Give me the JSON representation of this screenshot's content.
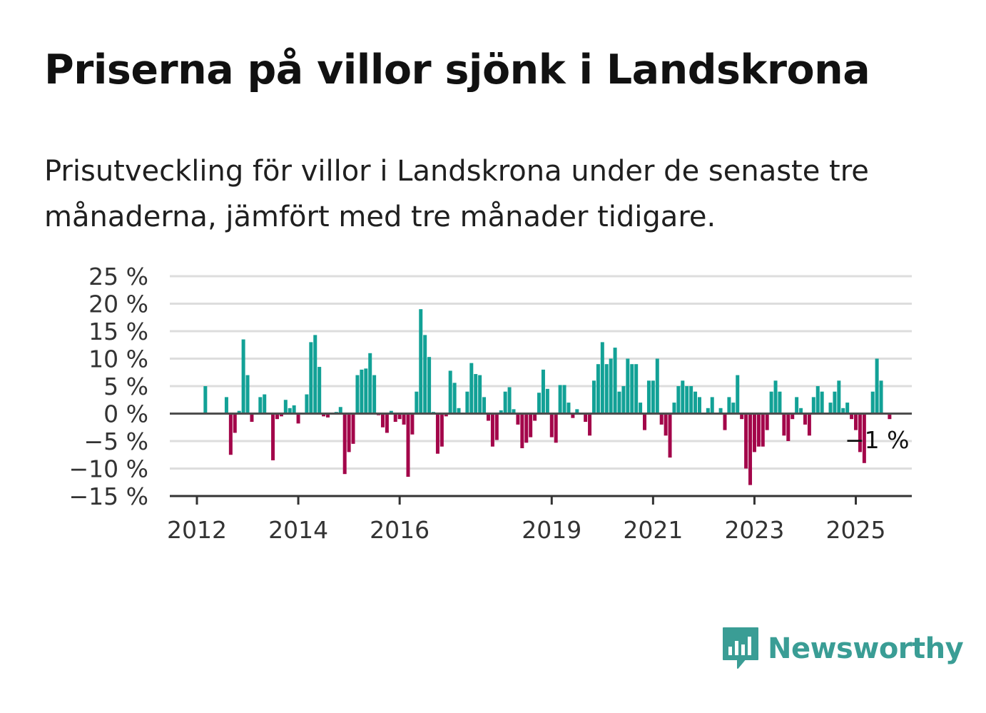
{
  "title": "Priserna på villor sjönk i Landskrona",
  "subtitle": "Prisutveckling för villor i Landskrona under de senaste tre månaderna, jämfört med tre månader tidigare.",
  "last_value_label": "−1 %",
  "brand": {
    "name": "Newsworthy",
    "icon": "newsworthy-logo-icon",
    "color": "#3a9d95"
  },
  "colors": {
    "positive": "#12a196",
    "negative": "#a3064a",
    "grid": "#dddddd",
    "axis": "#333333"
  },
  "chart_data": {
    "type": "bar",
    "title": "Priserna på villor sjönk i Landskrona",
    "x_unit": "month",
    "x_start": "2012-01",
    "y_unit": "%",
    "ylim": [
      -15,
      25
    ],
    "y_ticks": [
      {
        "value": 25,
        "label": "25 %"
      },
      {
        "value": 20,
        "label": "20 %"
      },
      {
        "value": 15,
        "label": "15 %"
      },
      {
        "value": 10,
        "label": "10 %"
      },
      {
        "value": 5,
        "label": "5 %"
      },
      {
        "value": 0,
        "label": "0 %"
      },
      {
        "value": -5,
        "label": "−5 %"
      },
      {
        "value": -10,
        "label": "−10 %"
      },
      {
        "value": -15,
        "label": "−15 %"
      }
    ],
    "x_ticks": [
      "2012",
      "2014",
      "2016",
      "2019",
      "2021",
      "2023",
      "2025"
    ],
    "grid": true,
    "legend": "none",
    "series": [
      {
        "values": [
          0,
          0,
          5,
          0,
          0,
          0,
          0,
          3,
          -7.5,
          -3.5,
          0.5,
          13.5,
          7,
          -1.5,
          0,
          3,
          3.5,
          0,
          -8.5,
          -1,
          -0.5,
          2.5,
          1,
          1.5,
          -1.8,
          0,
          3.5,
          13,
          14.3,
          8.5,
          -0.5,
          -0.7,
          0,
          0.3,
          1.2,
          -11,
          -7,
          -5.5,
          7,
          8,
          8.2,
          11,
          7,
          -0.3,
          -2.5,
          -3.5,
          0.5,
          -1.5,
          -1,
          -2,
          -11.5,
          -3.8,
          4,
          19,
          14.3,
          10.3,
          0.3,
          -7.3,
          -6,
          -0.5,
          7.8,
          5.6,
          1,
          0,
          4,
          9.2,
          7.2,
          7,
          3,
          -1.3,
          -6,
          -4.8,
          0.6,
          4,
          4.8,
          0.8,
          -2,
          -6.3,
          -5.3,
          -4.3,
          -1.3,
          3.8,
          8,
          4.5,
          -4.3,
          -5.3,
          5.2,
          5.2,
          2,
          -0.8,
          0.8,
          0,
          -1.5,
          -4,
          6,
          9,
          13,
          9,
          10,
          12,
          4,
          5,
          10,
          9,
          9,
          2,
          -3,
          6,
          6,
          10,
          -2,
          -4,
          -8,
          2,
          5,
          6,
          5,
          5,
          4,
          3,
          0,
          1,
          3,
          0,
          1,
          -3,
          3,
          2,
          7,
          -1,
          -10,
          -13,
          -7,
          -6,
          -6,
          -3,
          4,
          6,
          4,
          -4,
          -5,
          -1,
          3,
          1,
          -2,
          -4,
          3,
          5,
          4,
          0,
          2,
          4,
          6,
          1,
          2,
          -1,
          -3,
          -7,
          -9,
          0,
          4,
          10,
          6,
          0,
          -1
        ]
      }
    ]
  }
}
